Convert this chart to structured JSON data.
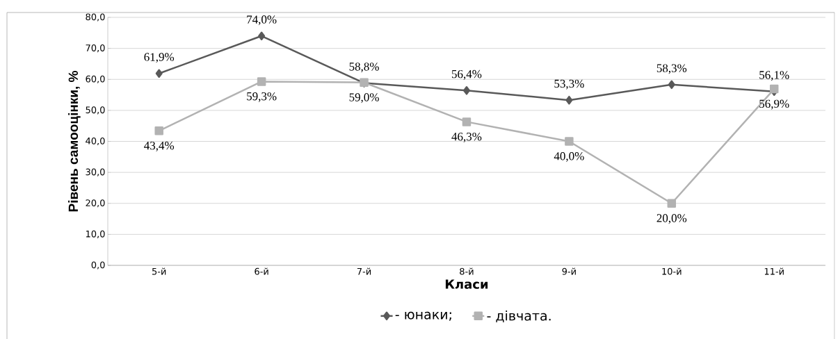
{
  "chart_data": {
    "type": "line",
    "xlabel": "Класи",
    "ylabel": "Рівень самооцінки, %",
    "categories": [
      "5-й",
      "6-й",
      "7-й",
      "8-й",
      "9-й",
      "10-й",
      "11-й"
    ],
    "series": [
      {
        "name": "- юнаки;",
        "color": "#595959",
        "marker": "diamond",
        "values": [
          61.9,
          74.0,
          58.8,
          56.4,
          53.3,
          58.3,
          56.1
        ],
        "value_labels": [
          "61,9%",
          "74,0%",
          "58,8%",
          "56,4%",
          "53,3%",
          "58,3%",
          "56,1%"
        ]
      },
      {
        "name": "- дівчата.",
        "color": "#b2b2b2",
        "marker": "square",
        "values": [
          43.4,
          59.3,
          59.0,
          46.3,
          40.0,
          20.0,
          56.9
        ],
        "value_labels": [
          "43,4%",
          "59,3%",
          "59,0%",
          "46,3%",
          "40,0%",
          "20,0%",
          "56,9%"
        ]
      }
    ],
    "ylim": [
      0,
      80
    ],
    "yticks": [
      {
        "value": 0,
        "label": "0,0"
      },
      {
        "value": 10,
        "label": "10,0"
      },
      {
        "value": 20,
        "label": "20,0"
      },
      {
        "value": 30,
        "label": "30,0"
      },
      {
        "value": 40,
        "label": "40,0"
      },
      {
        "value": 50,
        "label": "50,0"
      },
      {
        "value": 60,
        "label": "60,0"
      },
      {
        "value": 70,
        "label": "70,0"
      },
      {
        "value": 80,
        "label": "80,0"
      }
    ],
    "grid": "y",
    "legend": "bottom",
    "line_style": "solid"
  }
}
